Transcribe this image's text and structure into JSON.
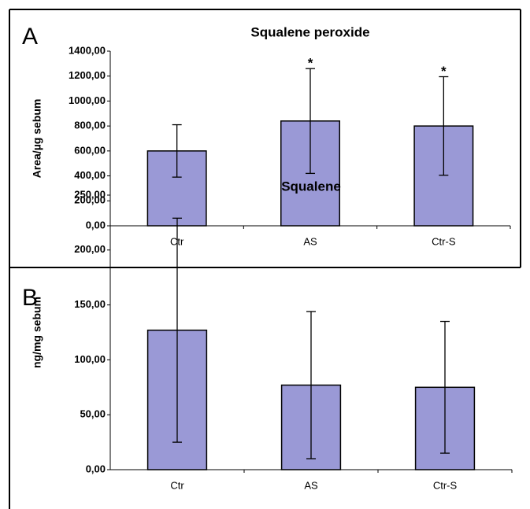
{
  "chart_data": [
    {
      "type": "bar",
      "panel_label": "A",
      "title": "Squalene peroxide",
      "y_label": "Area/µg sebum",
      "categories": [
        "Ctr",
        "AS",
        "Ctr-S"
      ],
      "values": [
        600,
        840,
        800
      ],
      "errors": [
        210,
        420,
        395
      ],
      "color": "#9a99d6",
      "ylim": [
        0,
        1400
      ],
      "yticks": [
        {
          "value": 0,
          "label": "0,00"
        },
        {
          "value": 200,
          "label": "200,00"
        },
        {
          "value": 400,
          "label": "400,00"
        },
        {
          "value": 600,
          "label": "600,00"
        },
        {
          "value": 800,
          "label": "800,00"
        },
        {
          "value": 1000,
          "label": "1000,00"
        },
        {
          "value": 1200,
          "label": "1200,00"
        },
        {
          "value": 1400,
          "label": "1400,00"
        }
      ],
      "annotations": [
        {
          "text": "*",
          "category": "AS"
        },
        {
          "text": "*",
          "category": "Ctr-S"
        }
      ]
    },
    {
      "type": "bar",
      "panel_label": "B",
      "title": "Squalene",
      "y_label": "ng/mg sebum",
      "categories": [
        "Ctr",
        "AS",
        "Ctr-S"
      ],
      "values": [
        127,
        77,
        75
      ],
      "errors": [
        102,
        67,
        60
      ],
      "color": "#9a99d6",
      "ylim": [
        0,
        250
      ],
      "yticks": [
        {
          "value": 0,
          "label": "0,00"
        },
        {
          "value": 50,
          "label": "50,00"
        },
        {
          "value": 100,
          "label": "100,00"
        },
        {
          "value": 150,
          "label": "150,00"
        },
        {
          "value": 200,
          "label": "200,00"
        },
        {
          "value": 250,
          "label": "250,00"
        }
      ]
    }
  ]
}
